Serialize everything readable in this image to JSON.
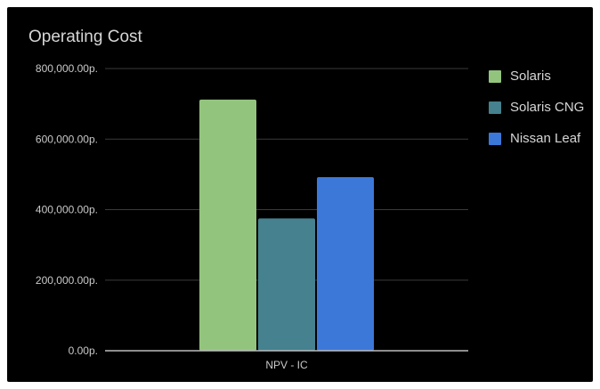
{
  "chart_data": {
    "type": "bar",
    "title": "Operating Cost",
    "categories": [
      "NPV - IC"
    ],
    "series": [
      {
        "name": "Solaris",
        "values": [
          712000
        ],
        "color": "#93c47d"
      },
      {
        "name": "Solaris CNG",
        "values": [
          375000
        ],
        "color": "#45818e"
      },
      {
        "name": "Nissan Leaf",
        "values": [
          492000
        ],
        "color": "#3c78d8"
      }
    ],
    "ylim": [
      0,
      800000
    ],
    "yticks": [
      0,
      200000,
      400000,
      600000,
      800000
    ],
    "ytick_labels": [
      "0.00р.",
      "200,000.00р.",
      "400,000.00р.",
      "600,000.00р.",
      "800,000.00р."
    ],
    "legend_position": "right",
    "grid": true
  }
}
